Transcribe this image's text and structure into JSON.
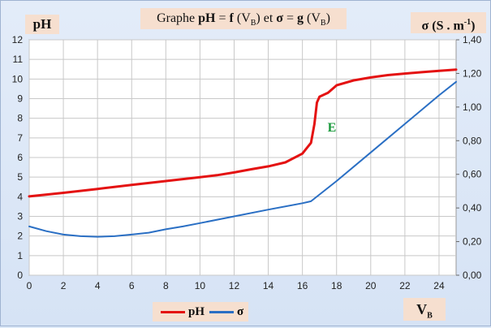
{
  "chart_data": {
    "type": "line",
    "title": {
      "pre": "Graphe ",
      "ph": "pH",
      "eq1": " = ",
      "f": "f",
      "open1": " (V",
      "sub1": "B",
      "close1": ") et ",
      "sigma": "σ",
      "eq2": " = ",
      "g": "g",
      "open2": " (V",
      "sub2": "B",
      "close2": ")"
    },
    "ylabel_left": "pH",
    "ylabel_right": {
      "main": "σ (S . m",
      "sup": "-1",
      "end": ")"
    },
    "xlabel": {
      "main": "V",
      "sub": "B"
    },
    "annotation": "E",
    "xlim": [
      0,
      25
    ],
    "ylim_left": [
      0,
      12
    ],
    "ylim_right": [
      0,
      1.4
    ],
    "x_ticks": [
      "0",
      "2",
      "4",
      "6",
      "8",
      "10",
      "12",
      "14",
      "16",
      "18",
      "20",
      "22",
      "24"
    ],
    "y_left_ticks": [
      "0",
      "1",
      "2",
      "3",
      "4",
      "5",
      "6",
      "7",
      "8",
      "9",
      "10",
      "11",
      "12"
    ],
    "y_right_ticks": [
      "0,00",
      "0,20",
      "0,40",
      "0,60",
      "0,80",
      "1,00",
      "1,20",
      "1,40"
    ],
    "grid": true,
    "legend_position": "bottom",
    "series": [
      {
        "name": "pH",
        "axis": "left",
        "color": "#e41212",
        "points": [
          [
            0,
            4.02
          ],
          [
            2,
            4.2
          ],
          [
            4,
            4.4
          ],
          [
            6,
            4.6
          ],
          [
            8,
            4.8
          ],
          [
            10,
            5.0
          ],
          [
            11,
            5.1
          ],
          [
            12,
            5.24
          ],
          [
            13,
            5.4
          ],
          [
            14,
            5.55
          ],
          [
            15,
            5.75
          ],
          [
            16,
            6.2
          ],
          [
            16.5,
            6.75
          ],
          [
            16.7,
            7.7
          ],
          [
            16.85,
            8.8
          ],
          [
            17.0,
            9.1
          ],
          [
            17.5,
            9.3
          ],
          [
            18,
            9.68
          ],
          [
            19,
            9.93
          ],
          [
            20,
            10.08
          ],
          [
            21,
            10.2
          ],
          [
            22,
            10.28
          ],
          [
            23,
            10.35
          ],
          [
            24,
            10.42
          ],
          [
            25,
            10.48
          ]
        ]
      },
      {
        "name": "σ",
        "axis": "right",
        "color": "#2a6fc4",
        "points": [
          [
            0,
            0.29
          ],
          [
            1,
            0.262
          ],
          [
            2,
            0.242
          ],
          [
            3,
            0.232
          ],
          [
            4,
            0.229
          ],
          [
            5,
            0.232
          ],
          [
            6,
            0.242
          ],
          [
            7,
            0.253
          ],
          [
            8,
            0.273
          ],
          [
            9,
            0.29
          ],
          [
            10,
            0.31
          ],
          [
            12,
            0.35
          ],
          [
            14,
            0.39
          ],
          [
            16,
            0.428
          ],
          [
            16.5,
            0.44
          ],
          [
            18,
            0.56
          ],
          [
            20,
            0.73
          ],
          [
            22,
            0.9
          ],
          [
            24,
            1.07
          ],
          [
            25,
            1.15
          ]
        ]
      }
    ]
  }
}
